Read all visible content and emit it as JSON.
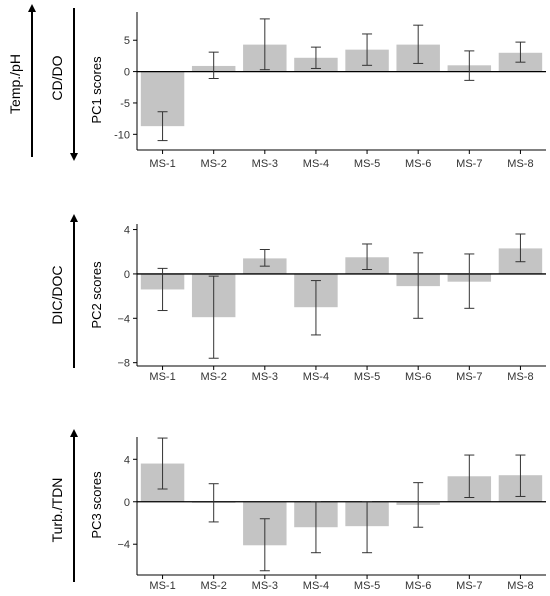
{
  "chart_data": [
    {
      "type": "bar",
      "ylabel": "PC1 scores",
      "categories": [
        "MS-1",
        "MS-2",
        "MS-3",
        "MS-4",
        "MS-5",
        "MS-6",
        "MS-7",
        "MS-8"
      ],
      "values": [
        -8.7,
        0.9,
        4.3,
        2.2,
        3.5,
        4.3,
        1.0,
        3.0
      ],
      "err_low": [
        -11.0,
        -1.1,
        0.3,
        0.5,
        1.0,
        1.3,
        -1.4,
        1.5
      ],
      "err_high": [
        -6.4,
        3.1,
        8.4,
        3.9,
        6.0,
        7.4,
        3.3,
        4.7
      ],
      "yticks": [
        5,
        0,
        -5,
        -10
      ],
      "ytick_labels": [
        "5",
        "0",
        "-5",
        "-10"
      ],
      "ylim": [
        -12.5,
        9.5
      ],
      "side_labels": {
        "outer": "Temp./pH",
        "inner": "CD/DO"
      },
      "bar_color": "#c4c4c4",
      "grid": false
    },
    {
      "type": "bar",
      "ylabel": "PC2 scores",
      "categories": [
        "MS-1",
        "MS-2",
        "MS-3",
        "MS-4",
        "MS-5",
        "MS-6",
        "MS-7",
        "MS-8"
      ],
      "values": [
        -1.4,
        -3.9,
        1.4,
        -3.0,
        1.5,
        -1.1,
        -0.7,
        2.3
      ],
      "err_low": [
        -3.3,
        -7.6,
        0.7,
        -5.5,
        0.4,
        -4.0,
        -3.1,
        1.1
      ],
      "err_high": [
        0.5,
        -0.2,
        2.2,
        -0.6,
        2.7,
        1.9,
        1.8,
        3.6
      ],
      "yticks": [
        4,
        0,
        -4,
        -8
      ],
      "ytick_labels": [
        "4",
        "0",
        "−4",
        "−8"
      ],
      "ylim": [
        -8.3,
        4.5
      ],
      "side_labels": {
        "inner": "DIC/DOC"
      },
      "bar_color": "#c4c4c4",
      "grid": false
    },
    {
      "type": "bar",
      "ylabel": "PC3 scores",
      "categories": [
        "MS-1",
        "MS-2",
        "MS-3",
        "MS-4",
        "MS-5",
        "MS-6",
        "MS-7",
        "MS-8"
      ],
      "values": [
        3.6,
        -0.1,
        -4.1,
        -2.4,
        -2.3,
        -0.3,
        2.4,
        2.5
      ],
      "err_low": [
        1.2,
        -1.9,
        -6.5,
        -4.8,
        -4.8,
        -2.4,
        0.4,
        0.5
      ],
      "err_high": [
        6.0,
        1.7,
        -1.6,
        0.0,
        0.0,
        1.8,
        4.4,
        4.4
      ],
      "yticks": [
        4,
        0,
        -4
      ],
      "ytick_labels": [
        "4",
        "0",
        "−4"
      ],
      "ylim": [
        -6.9,
        6.1
      ],
      "side_labels": {
        "inner": "Turb./TDN"
      },
      "bar_color": "#c4c4c4",
      "grid": false
    }
  ]
}
